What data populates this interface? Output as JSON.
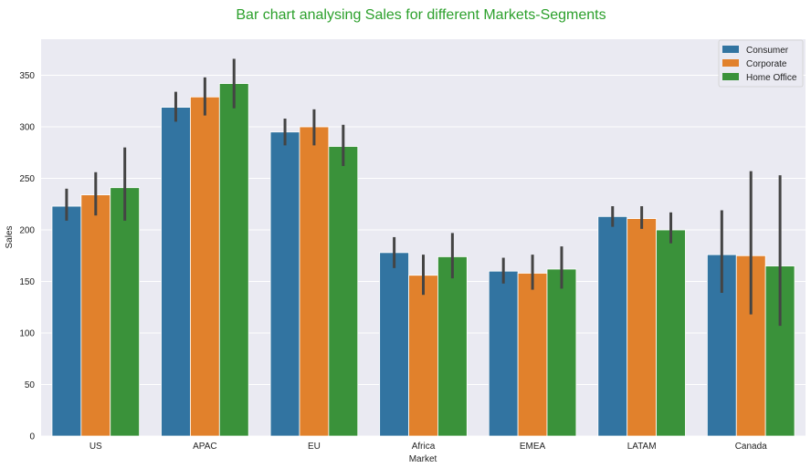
{
  "chart_data": {
    "type": "bar",
    "title": "Bar chart analysing Sales for different Markets-Segments",
    "xlabel": "Market",
    "ylabel": "Sales",
    "ylim": [
      0,
      385
    ],
    "yticks": [
      0,
      50,
      100,
      150,
      200,
      250,
      300,
      350
    ],
    "categories": [
      "US",
      "APAC",
      "EU",
      "Africa",
      "EMEA",
      "LATAM",
      "Canada"
    ],
    "series": [
      {
        "name": "Consumer",
        "color": "#3274a1",
        "values": [
          223,
          319,
          295,
          178,
          160,
          213,
          176
        ],
        "ci_low": [
          209,
          305,
          282,
          163,
          148,
          203,
          139
        ],
        "ci_high": [
          240,
          334,
          308,
          193,
          173,
          223,
          219
        ]
      },
      {
        "name": "Corporate",
        "color": "#e1812c",
        "values": [
          234,
          329,
          300,
          156,
          158,
          211,
          175
        ],
        "ci_low": [
          214,
          311,
          282,
          137,
          142,
          201,
          118
        ],
        "ci_high": [
          256,
          348,
          317,
          176,
          176,
          223,
          257
        ]
      },
      {
        "name": "Home Office",
        "color": "#3a923a",
        "values": [
          241,
          342,
          281,
          174,
          162,
          200,
          165
        ],
        "ci_low": [
          209,
          318,
          262,
          153,
          143,
          187,
          107
        ],
        "ci_high": [
          280,
          366,
          302,
          197,
          184,
          217,
          253
        ]
      }
    ],
    "grid": true,
    "legend_position": "top-right"
  }
}
